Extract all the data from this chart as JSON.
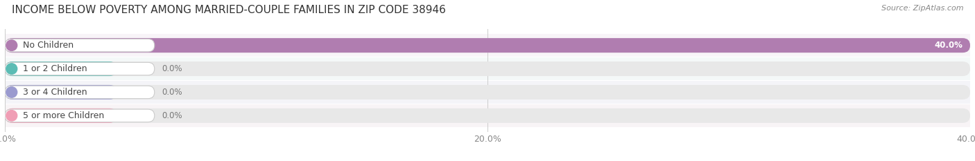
{
  "title": "INCOME BELOW POVERTY AMONG MARRIED-COUPLE FAMILIES IN ZIP CODE 38946",
  "source": "Source: ZipAtlas.com",
  "categories": [
    "No Children",
    "1 or 2 Children",
    "3 or 4 Children",
    "5 or more Children"
  ],
  "values": [
    40.0,
    0.0,
    0.0,
    0.0
  ],
  "bar_colors": [
    "#b07db0",
    "#5bbcb4",
    "#9a9acf",
    "#f09eb5"
  ],
  "xlim_max": 40.0,
  "xticks": [
    0.0,
    20.0,
    40.0
  ],
  "xticklabels": [
    "0.0%",
    "20.0%",
    "40.0%"
  ],
  "background_color": "#f7f7f7",
  "bar_bg_color": "#e8e8e8",
  "row_bg_colors": [
    "#ffffff",
    "#f0f0f0",
    "#ffffff",
    "#f0f0f0"
  ],
  "title_fontsize": 11,
  "tick_fontsize": 9,
  "label_fontsize": 9,
  "value_fontsize": 8.5
}
